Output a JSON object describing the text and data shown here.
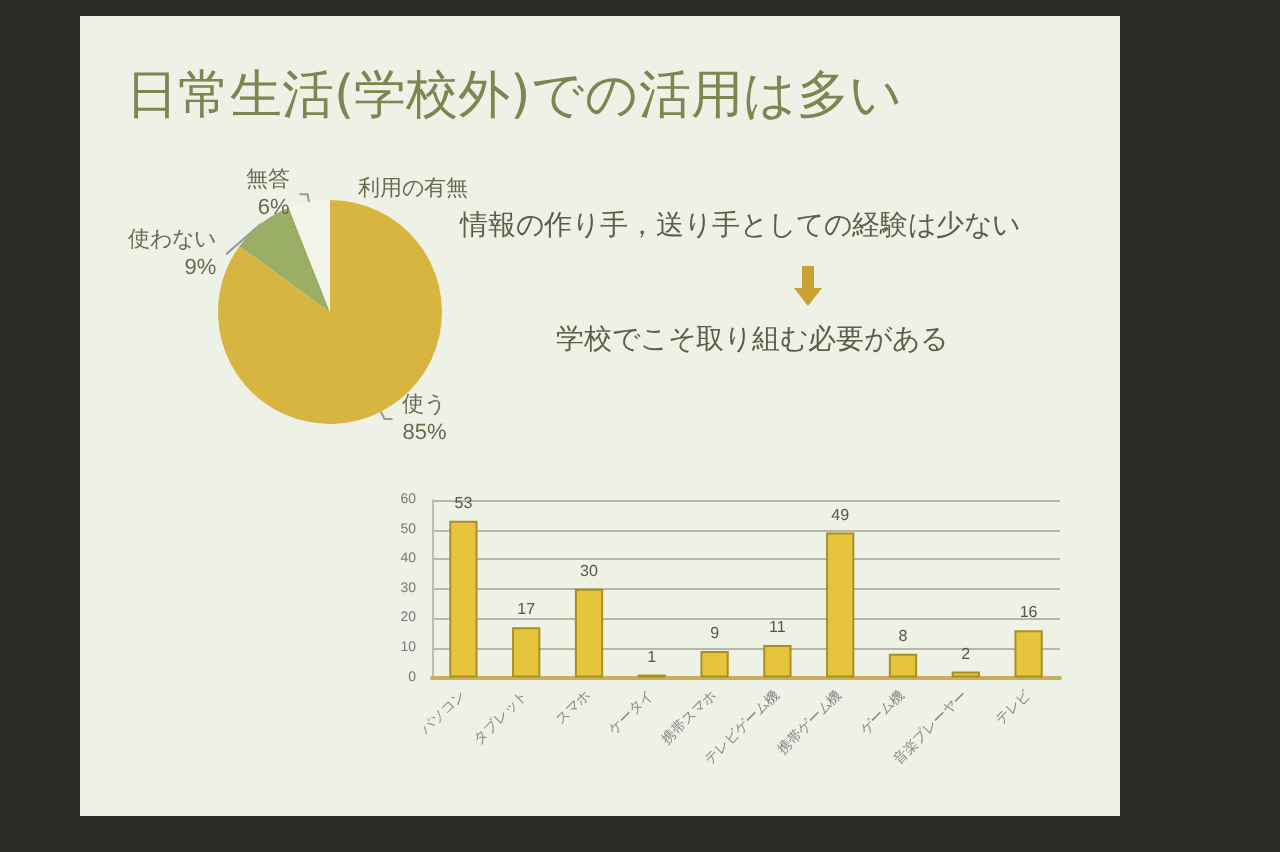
{
  "chart_data": [
    {
      "type": "pie",
      "title": "日常生活(学校外)での活用は多い",
      "subtitle": "利用の有無",
      "categories": [
        "使う",
        "使わない",
        "無答"
      ],
      "values": [
        85,
        9,
        6
      ],
      "colors": [
        "#d8b440",
        "#9aae66",
        "#f4f4ea"
      ],
      "value_labels": [
        "85%",
        "9%",
        "6%"
      ],
      "annotations": [
        "情報の作り手，送り手としての経験は少ない",
        "学校でこそ取り組む必要がある"
      ]
    },
    {
      "type": "bar",
      "categories": [
        "パソコン",
        "タブレット",
        "スマホ",
        "ケータイ",
        "携帯スマホ",
        "テレビゲーム機",
        "携帯ゲーム機",
        "ゲーム機",
        "音楽プレーヤー",
        "テレビ"
      ],
      "values": [
        53,
        17,
        30,
        1,
        9,
        11,
        49,
        8,
        2,
        16
      ],
      "color": "#e6c53c",
      "ylim": [
        0,
        60
      ],
      "yticks": [
        0,
        10,
        20,
        30,
        40,
        50,
        60
      ],
      "grid": "y",
      "data_labels": true
    }
  ]
}
